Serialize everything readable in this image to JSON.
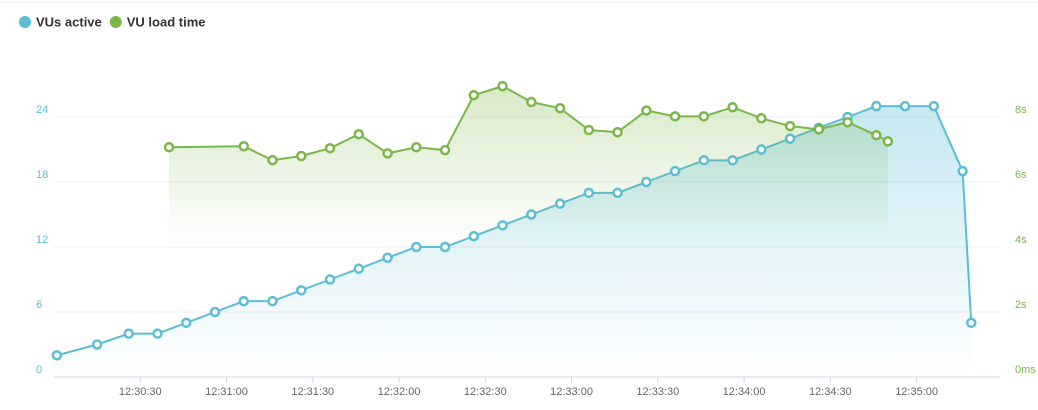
{
  "chart_data": {
    "type": "line",
    "x": [
      "12:30:01",
      "12:30:15",
      "12:30:26",
      "12:30:36",
      "12:30:46",
      "12:30:56",
      "12:31:06",
      "12:31:16",
      "12:31:26",
      "12:31:36",
      "12:31:46",
      "12:31:56",
      "12:32:06",
      "12:32:16",
      "12:32:26",
      "12:32:36",
      "12:32:46",
      "12:32:56",
      "12:33:06",
      "12:33:16",
      "12:33:26",
      "12:33:36",
      "12:33:46",
      "12:33:56",
      "12:34:06",
      "12:34:16",
      "12:34:26",
      "12:34:36",
      "12:34:46",
      "12:34:56",
      "12:35:06",
      "12:35:16",
      "12:35:19"
    ],
    "series": [
      {
        "name": "VUs active",
        "color": "#5bbdd6",
        "values": [
          2,
          3,
          4,
          4,
          5,
          6,
          7,
          7,
          8,
          9,
          10,
          11,
          12,
          12,
          13,
          14,
          15,
          16,
          17,
          17,
          18,
          19,
          20,
          20,
          21,
          22,
          23,
          24,
          25,
          25,
          25,
          19,
          5
        ]
      },
      {
        "name": "VU load time",
        "color": "#7ab648",
        "axis": "y2",
        "x": [
          "12:30:40",
          "12:31:06",
          "12:31:16",
          "12:31:26",
          "12:31:36",
          "12:31:46",
          "12:31:56",
          "12:32:06",
          "12:32:16",
          "12:32:26",
          "12:32:36",
          "12:32:46",
          "12:32:56",
          "12:33:06",
          "12:33:16",
          "12:33:26",
          "12:33:36",
          "12:33:46",
          "12:33:56",
          "12:34:06",
          "12:34:16",
          "12:34:26",
          "12:34:36",
          "12:34:46",
          "12:34:50"
        ],
        "values": [
          7.07,
          7.1,
          6.67,
          6.8,
          7.04,
          7.47,
          6.88,
          7.07,
          6.98,
          8.67,
          8.95,
          8.46,
          8.27,
          7.6,
          7.53,
          8.2,
          8.02,
          8.02,
          8.3,
          7.96,
          7.72,
          7.62,
          7.84,
          7.44,
          7.25
        ]
      }
    ],
    "xlim": [
      "12:30:00",
      "12:35:29"
    ],
    "xticks": [
      "12:30:30",
      "12:31:00",
      "12:31:30",
      "12:32:00",
      "12:32:30",
      "12:33:00",
      "12:33:30",
      "12:34:00",
      "12:34:30",
      "12:35:00"
    ],
    "ylim": [
      0,
      30
    ],
    "yticks": [
      0,
      6,
      12,
      18,
      24
    ],
    "y2lim": [
      0,
      10
    ],
    "y2ticks": [
      {
        "value": 0,
        "label": "0ms"
      },
      {
        "value": 2,
        "label": "2s"
      },
      {
        "value": 4,
        "label": "4s"
      },
      {
        "value": 6,
        "label": "6s"
      },
      {
        "value": 8,
        "label": "8s"
      }
    ],
    "grid": true
  }
}
